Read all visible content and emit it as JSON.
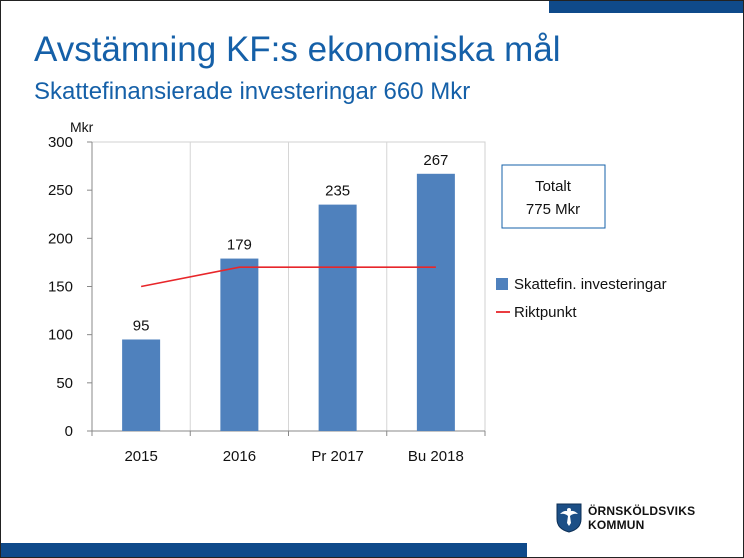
{
  "slide": {
    "title": "Avstämning KF:s ekonomiska mål",
    "subtitle": "Skattefinansierade investeringar 660 Mkr",
    "logo": {
      "line1": "ÖRNSKÖLDSVIKS",
      "line2": "KOMMUN"
    }
  },
  "colors": {
    "brand_blue": "#0f4a8a",
    "title_blue": "#1560a8",
    "bar": "#4f81bd",
    "line": "#e8262a"
  },
  "chart_data": {
    "type": "bar",
    "title": "Skattefinansierade investeringar 660 Mkr",
    "ylabel": "Mkr",
    "xlabel": "",
    "ylim": [
      0,
      300
    ],
    "yticks": [
      "0",
      "50",
      "100",
      "150",
      "200",
      "250",
      "300"
    ],
    "categories": [
      "2015",
      "2016",
      "Pr 2017",
      "Bu 2018"
    ],
    "series": [
      {
        "name": "Skattefin. investeringar",
        "type": "bar",
        "values": [
          95,
          179,
          235,
          267
        ],
        "labels": [
          "95",
          "179",
          "235",
          "267"
        ]
      },
      {
        "name": "Riktpunkt",
        "type": "line",
        "values": [
          150,
          170,
          170,
          170
        ]
      }
    ],
    "legend_position": "right",
    "annotation": {
      "line1": "Totalt",
      "line2": "775 Mkr"
    }
  }
}
